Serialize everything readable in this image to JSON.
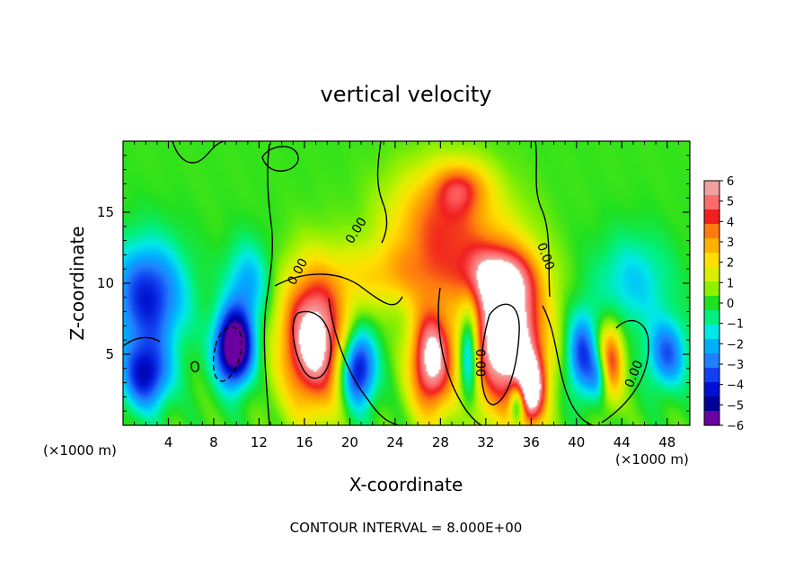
{
  "chart_data": {
    "type": "heatmap",
    "title": "vertical velocity",
    "xlabel": "X-coordinate",
    "ylabel": "Z-coordinate",
    "x_unit_label": "(×1000 m)",
    "x_unit_label_right": "(×1000 m)",
    "xlim": [
      0,
      50
    ],
    "ylim": [
      0,
      20
    ],
    "x_ticks": [
      "4",
      "8",
      "12",
      "16",
      "20",
      "24",
      "28",
      "32",
      "36",
      "40",
      "44",
      "48"
    ],
    "y_ticks": [
      "5",
      "10",
      "15"
    ],
    "colorbar": {
      "min": -6,
      "max": 6,
      "ticks": [
        "6",
        "5",
        "4",
        "3",
        "2",
        "1",
        "0",
        "−1",
        "−2",
        "−3",
        "−4",
        "−5",
        "−6"
      ],
      "colors": [
        "#f0a0a0",
        "#ff6a6a",
        "#f02020",
        "#ff7a10",
        "#ffb000",
        "#ffe000",
        "#d8f000",
        "#90f000",
        "#20e020",
        "#00f080",
        "#00e8e8",
        "#00b0ff",
        "#2080ff",
        "#1040f0",
        "#0010d0",
        "#000098",
        "#6a00a0"
      ]
    },
    "contour_labels": [
      "0.00",
      "0.00",
      "0.00",
      "0.00",
      "0.00",
      "0.00"
    ],
    "footer": "CONTOUR INTERVAL = 8.000E+00",
    "grid": false,
    "blobs": [
      {
        "x": 16.8,
        "z": 6.0,
        "rx": 3.0,
        "rz": 5.0,
        "v": 7
      },
      {
        "x": 33.8,
        "z": 6.4,
        "rx": 3.4,
        "rz": 5.4,
        "v": 8
      },
      {
        "x": 27.2,
        "z": 4.6,
        "rx": 2.0,
        "rz": 4.0,
        "v": 6.5
      },
      {
        "x": 36.0,
        "z": 2.4,
        "rx": 1.3,
        "rz": 2.6,
        "v": 5.5
      },
      {
        "x": 28.2,
        "z": 14.0,
        "rx": 5.0,
        "rz": 4.2,
        "v": 4.0
      },
      {
        "x": 33.0,
        "z": 10.5,
        "rx": 3.6,
        "rz": 2.2,
        "v": 3.0
      },
      {
        "x": 23.5,
        "z": 10.5,
        "rx": 5.5,
        "rz": 2.4,
        "v": 2.0
      },
      {
        "x": 29.8,
        "z": 16.8,
        "rx": 2.5,
        "rz": 1.8,
        "v": 2.5
      },
      {
        "x": 9.8,
        "z": 5.5,
        "rx": 1.7,
        "rz": 2.7,
        "v": -8
      },
      {
        "x": 2.2,
        "z": 9.0,
        "rx": 3.4,
        "rz": 4.0,
        "v": -4.5
      },
      {
        "x": 2.0,
        "z": 3.5,
        "rx": 2.2,
        "rz": 2.5,
        "v": -4.5
      },
      {
        "x": 20.7,
        "z": 4.0,
        "rx": 1.6,
        "rz": 2.8,
        "v": -5.5
      },
      {
        "x": 30.5,
        "z": 5.2,
        "rx": 0.9,
        "rz": 3.4,
        "v": -4.5
      },
      {
        "x": 40.5,
        "z": 5.0,
        "rx": 1.4,
        "rz": 3.0,
        "v": -4.0
      },
      {
        "x": 48.0,
        "z": 5.0,
        "rx": 1.8,
        "rz": 2.5,
        "v": -3.5
      },
      {
        "x": 45.0,
        "z": 10.0,
        "rx": 3.5,
        "rz": 3.5,
        "v": -2.0
      },
      {
        "x": 11.0,
        "z": 10.0,
        "rx": 2.0,
        "rz": 3.0,
        "v": -2.5
      },
      {
        "x": 34.8,
        "z": 1.5,
        "rx": 0.7,
        "rz": 1.5,
        "v": -4.0
      },
      {
        "x": 43.0,
        "z": 4.5,
        "rx": 1.2,
        "rz": 2.8,
        "v": 4.5
      },
      {
        "x": 42.0,
        "z": 3.5,
        "rx": 1.0,
        "rz": 1.8,
        "v": -2.5
      }
    ]
  }
}
